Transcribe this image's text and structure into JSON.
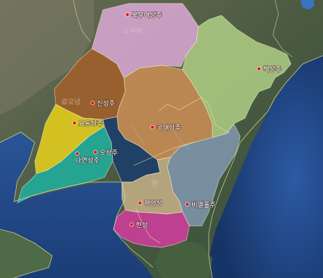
{
  "map": {
    "cities": [
      {
        "id": "bukbuyeo",
        "label": "북부여성주"
      },
      {
        "id": "sinseong",
        "label": "신성주"
      },
      {
        "id": "yodong",
        "label": "요동성주"
      },
      {
        "id": "osang",
        "label": "오성주"
      },
      {
        "id": "nayeon",
        "label": "나연성주"
      },
      {
        "id": "gukhae",
        "label": "국내성주"
      },
      {
        "id": "chaekseong",
        "label": "책성주"
      },
      {
        "id": "pyeongyang",
        "label": "평양성"
      },
      {
        "id": "biyeolhol",
        "label": "비열홀주"
      },
      {
        "id": "hanseong",
        "label": "한성"
      }
    ],
    "region_labels": [
      {
        "id": "faint-goguryeo",
        "label": "고구려"
      },
      {
        "id": "faint-raoning",
        "label": "료오녕"
      },
      {
        "id": "faint-han",
        "label": "한"
      }
    ],
    "colors": {
      "north": "#d7a6d2",
      "northeast": "#b9d98b",
      "northwest": "#a0602a",
      "center": "#c98d55",
      "yellow": "#e9d21a",
      "teal": "#1fb0a0",
      "navy": "#1c3d6a",
      "slate": "#8aa0bf",
      "tan": "#c8b188",
      "magenta": "#cf3d9c",
      "sea": "#1f3f7a"
    }
  }
}
